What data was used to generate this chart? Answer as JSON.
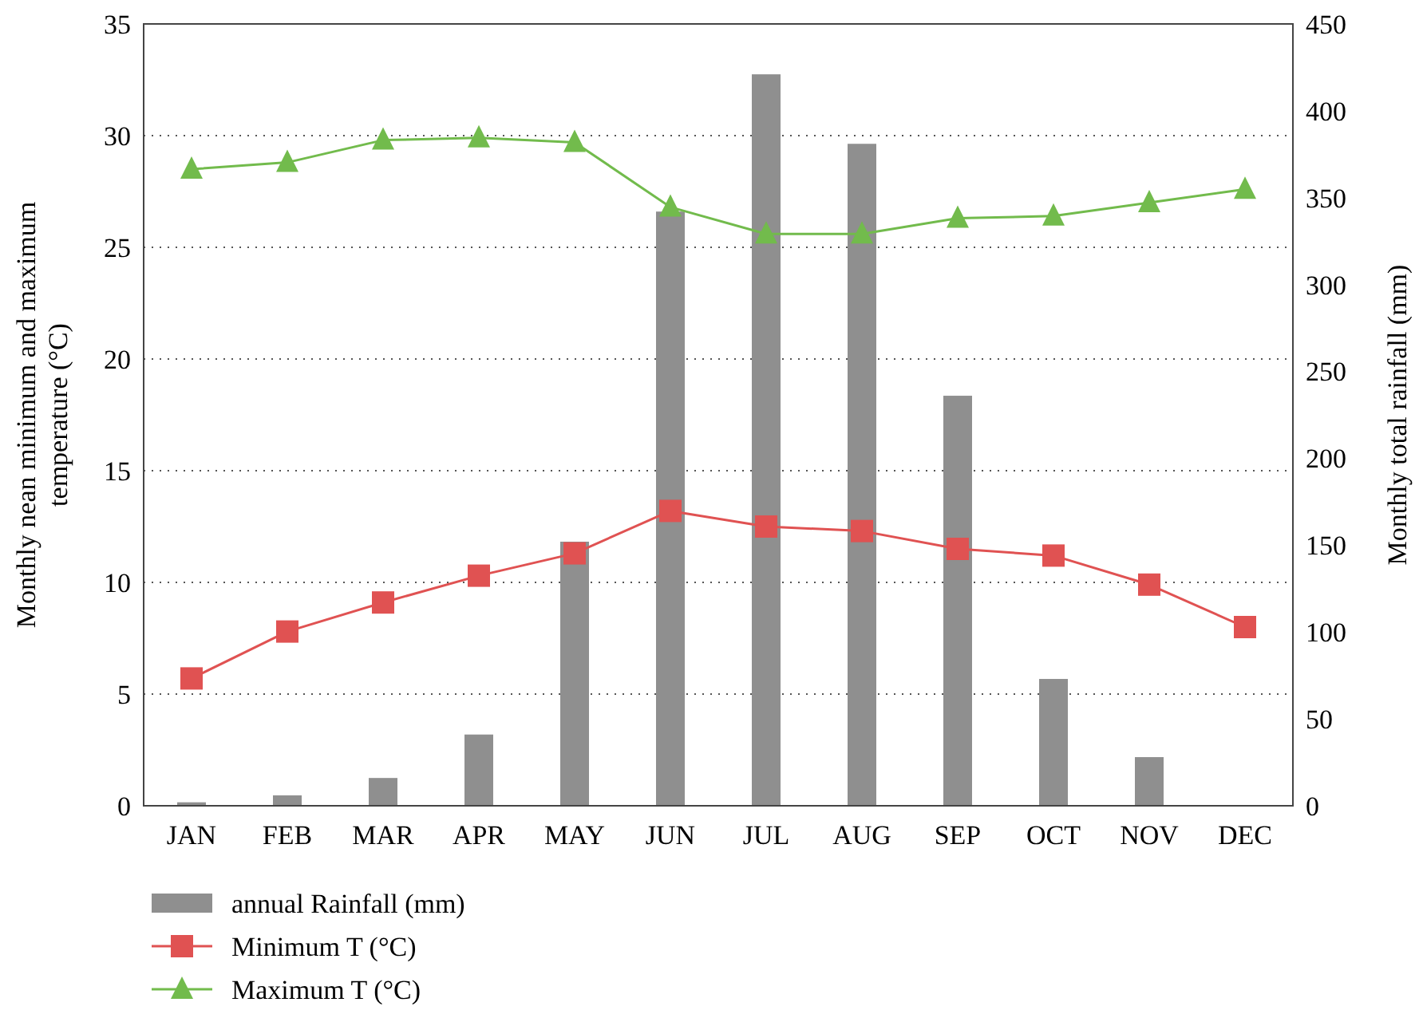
{
  "chart_data": {
    "type": "line",
    "categories": [
      "JAN",
      "FEB",
      "MAR",
      "APR",
      "MAY",
      "JUN",
      "JUL",
      "AUG",
      "SEP",
      "OCT",
      "NOV",
      "DEC"
    ],
    "ylabel": "Monthly nean minimum and maximum temperature (°C)",
    "y2label": "Monthly total rainfall (mm)",
    "ylim": [
      0,
      35
    ],
    "yticks": [
      0,
      5,
      10,
      15,
      20,
      25,
      30,
      35
    ],
    "y2lim": [
      0,
      450
    ],
    "y2ticks": [
      0,
      50,
      100,
      150,
      200,
      250,
      300,
      350,
      400,
      450
    ],
    "grid": "y",
    "legend": "bottom",
    "line_style": "solid",
    "series": [
      {
        "name": "annual Rainfall (mm)",
        "type": "bar",
        "axis": "y2",
        "color": "#8f8f8f",
        "values": [
          2,
          6,
          16,
          41,
          152,
          342,
          421,
          381,
          236,
          73,
          28,
          0
        ]
      },
      {
        "name": "Minimum T (°C)",
        "marker": "square",
        "color": "#e05252",
        "values": [
          5.7,
          7.8,
          9.1,
          10.3,
          11.3,
          13.2,
          12.5,
          12.3,
          11.5,
          11.2,
          9.9,
          8.0
        ]
      },
      {
        "name": "Maximum T (°C)",
        "marker": "triangle",
        "color": "#72bb4c",
        "values": [
          28.5,
          28.8,
          29.8,
          29.9,
          29.7,
          26.8,
          25.6,
          25.6,
          26.3,
          26.4,
          27.0,
          27.6
        ]
      }
    ]
  }
}
